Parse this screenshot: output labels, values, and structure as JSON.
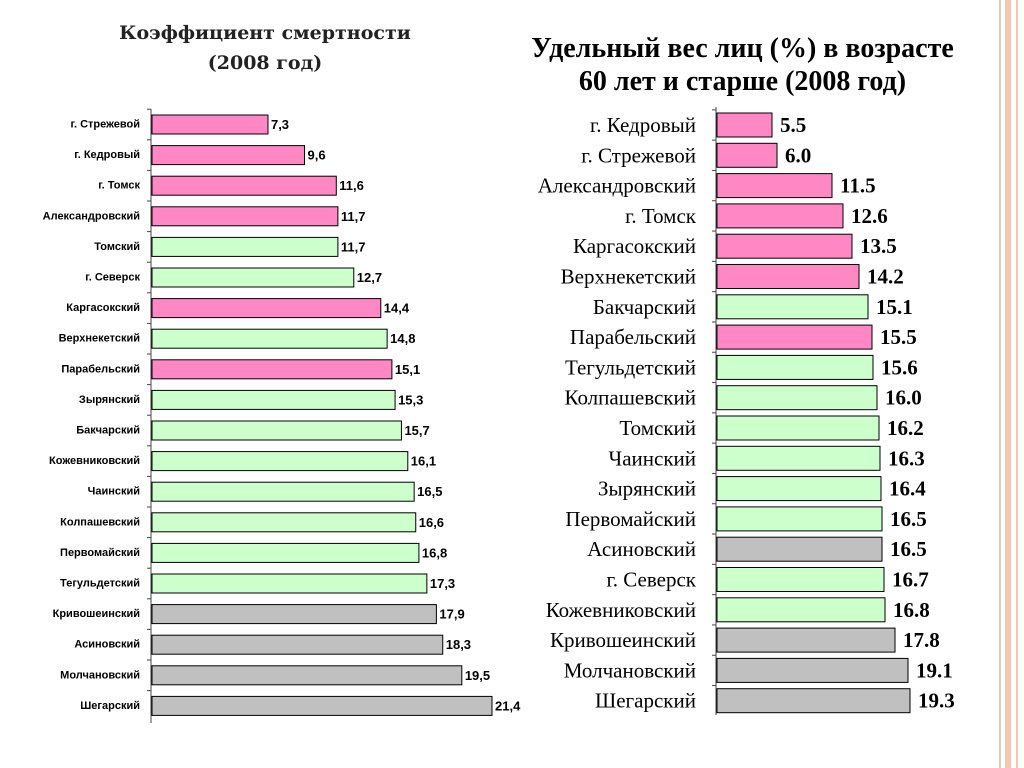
{
  "colors": {
    "pink": "#ff88c4",
    "green": "#ccffcc",
    "gray": "#c0c0c0",
    "bar_stroke": "#000000",
    "decoration": "#f5c7b0"
  },
  "chart_data": [
    {
      "type": "bar",
      "orientation": "horizontal",
      "title": "Коэффициент смертности",
      "subtitle": "(2008 год)",
      "xlabel": "",
      "ylabel": "",
      "xlim": [
        0,
        21.4
      ],
      "grid": false,
      "categories": [
        "г. Стрежевой",
        "г. Кедровый",
        "г. Томск",
        "Александровский",
        "Томский",
        "г. Северск",
        "Каргасокский",
        "Верхнекетский",
        "Парабельский",
        "Зырянский",
        "Бакчарский",
        "Кожевниковский",
        "Чаинский",
        "Колпашевский",
        "Первомайский",
        "Тегульдетский",
        "Кривошеинский",
        "Асиновский",
        "Молчановский",
        "Шегарский"
      ],
      "values": [
        7.3,
        9.6,
        11.6,
        11.7,
        11.7,
        12.7,
        14.4,
        14.8,
        15.1,
        15.3,
        15.7,
        16.1,
        16.5,
        16.6,
        16.8,
        17.3,
        17.9,
        18.3,
        19.5,
        21.4
      ],
      "value_labels": [
        "7,3",
        "9,6",
        "11,6",
        "11,7",
        "11,7",
        "12,7",
        "14,4",
        "14,8",
        "15,1",
        "15,3",
        "15,7",
        "16,1",
        "16,5",
        "16,6",
        "16,8",
        "17,3",
        "17,9",
        "18,3",
        "19,5",
        "21,4"
      ],
      "bar_colors": [
        "pink",
        "pink",
        "pink",
        "pink",
        "green",
        "green",
        "pink",
        "green",
        "pink",
        "green",
        "green",
        "green",
        "green",
        "green",
        "green",
        "green",
        "gray",
        "gray",
        "gray",
        "gray"
      ]
    },
    {
      "type": "bar",
      "orientation": "horizontal",
      "title": "Удельный вес лиц (%) в возрасте",
      "subtitle": "60 лет и старше (2008 год)",
      "xlabel": "",
      "ylabel": "",
      "xlim": [
        0,
        19.3
      ],
      "grid": false,
      "categories": [
        "г. Кедровый",
        "г. Стрежевой",
        "Александровский",
        "г. Томск",
        "Каргасокский",
        "Верхнекетский",
        "Бакчарский",
        "Парабельский",
        "Тегульдетский",
        "Колпашевский",
        "Томский",
        "Чаинский",
        "Зырянский",
        "Первомайский",
        "Асиновский",
        "г. Северск",
        "Кожевниковский",
        "Кривошеинский",
        "Молчановский",
        "Шегарский"
      ],
      "values": [
        5.5,
        6.0,
        11.5,
        12.6,
        13.5,
        14.2,
        15.1,
        15.5,
        15.6,
        16.0,
        16.2,
        16.3,
        16.4,
        16.5,
        16.5,
        16.7,
        16.8,
        17.8,
        19.1,
        19.3
      ],
      "value_labels": [
        "5.5",
        "6.0",
        "11.5",
        "12.6",
        "13.5",
        "14.2",
        "15.1",
        "15.5",
        "15.6",
        "16.0",
        "16.2",
        "16.3",
        "16.4",
        "16.5",
        "16.5",
        "16.7",
        "16.8",
        "17.8",
        "19.1",
        "19.3"
      ],
      "bar_colors": [
        "pink",
        "pink",
        "pink",
        "pink",
        "pink",
        "pink",
        "green",
        "pink",
        "green",
        "green",
        "green",
        "green",
        "green",
        "green",
        "gray",
        "green",
        "green",
        "gray",
        "gray",
        "gray"
      ]
    }
  ]
}
